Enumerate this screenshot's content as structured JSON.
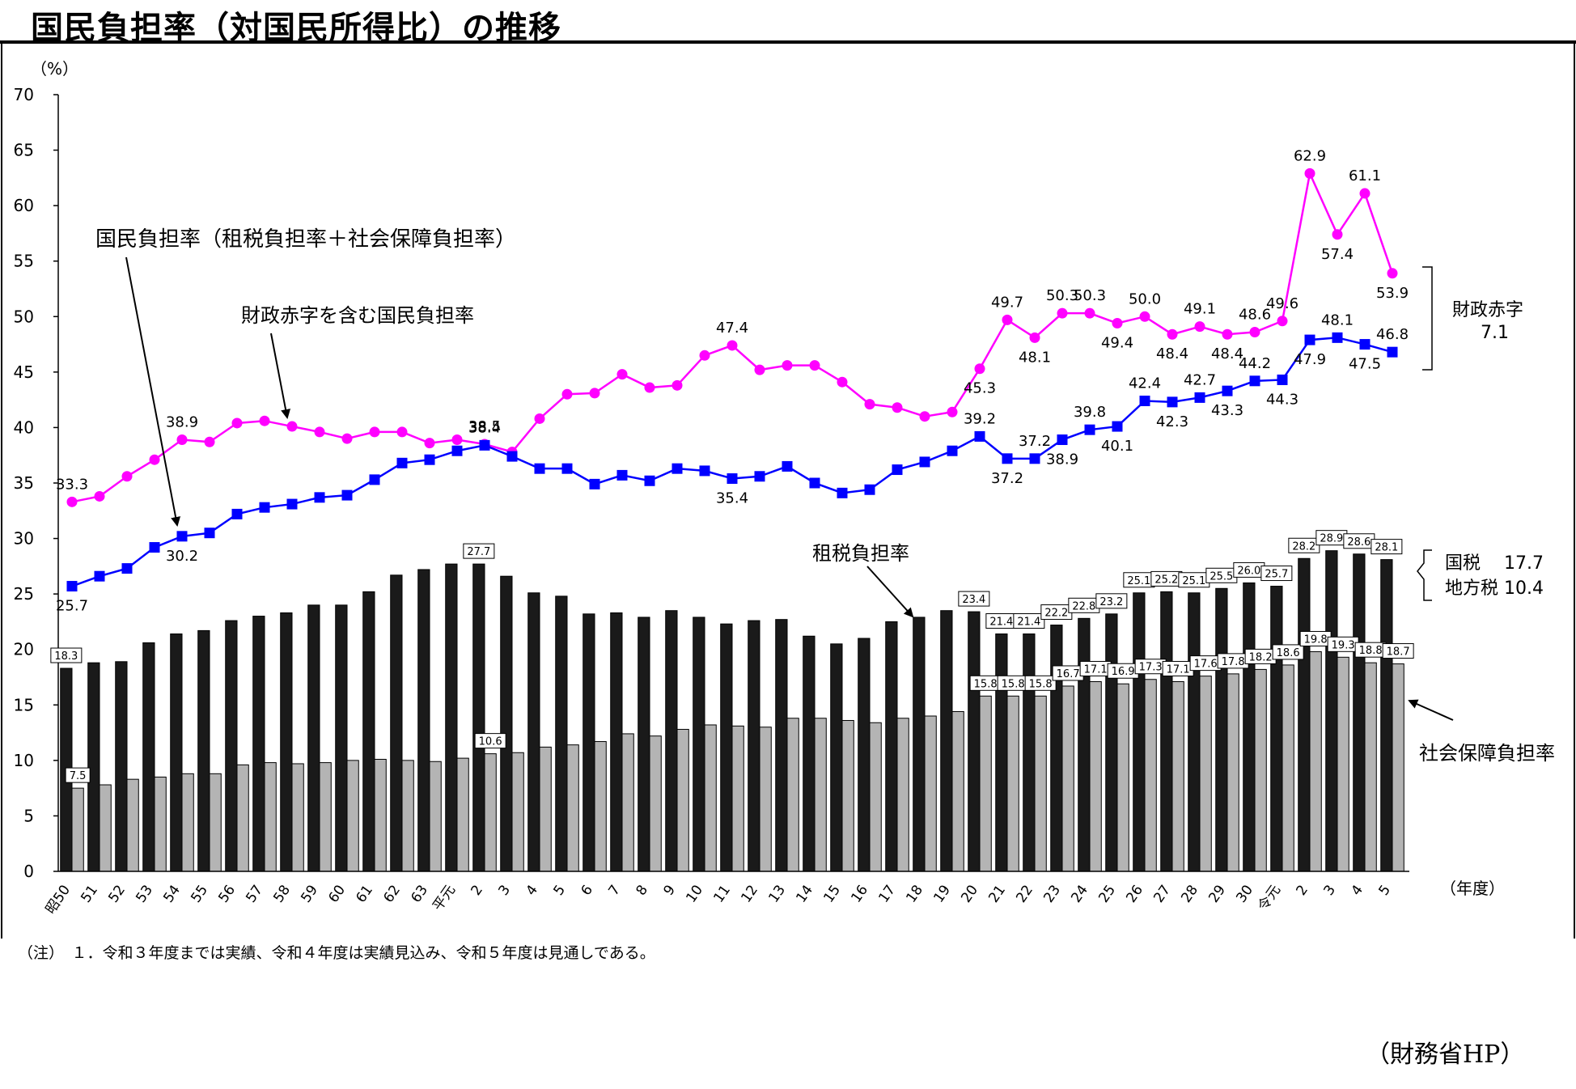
{
  "header": {
    "title": "国民負担率（対国民所得比）の推移"
  },
  "footer": {
    "note": "（注）　１．令和３年度までは実績、令和４年度は実績見込み、令和５年度は見通しである。",
    "source": "（財務省HP）"
  },
  "colors": {
    "deficit_line": "#ff00ff",
    "burden_line": "#0000ff",
    "tax_bar": "#1a1a1a",
    "social_bar": "#b4b4b4"
  },
  "annotations": {
    "burden": "国民負担率（租税負担率＋社会保障負担率）",
    "deficit": "財政赤字を含む国民負担率",
    "tax": "租税負担率",
    "social": "社会保障負担率",
    "bracket_top_line1": "財政赤字",
    "bracket_top_line2": "7.1",
    "bracket_bottom_line1": "国税　 17.7",
    "bracket_bottom_line2": "地方税 10.4"
  },
  "chart_data": {
    "type": "bar",
    "ylabel": "（%）",
    "xlabel": "（年度）",
    "ylim": [
      0,
      70
    ],
    "yticks": [
      0,
      5,
      10,
      15,
      20,
      25,
      30,
      35,
      40,
      45,
      50,
      55,
      60,
      65,
      70
    ],
    "categories": [
      "昭50",
      "51",
      "52",
      "53",
      "54",
      "55",
      "56",
      "57",
      "58",
      "59",
      "60",
      "61",
      "62",
      "63",
      "平元",
      "2",
      "3",
      "4",
      "5",
      "6",
      "7",
      "8",
      "9",
      "10",
      "11",
      "12",
      "13",
      "14",
      "15",
      "16",
      "17",
      "18",
      "19",
      "20",
      "21",
      "22",
      "23",
      "24",
      "25",
      "26",
      "27",
      "28",
      "29",
      "30",
      "令元",
      "2",
      "3",
      "4",
      "5"
    ],
    "series": [
      {
        "name": "租税負担率",
        "type": "bar",
        "values": [
          18.3,
          18.8,
          18.9,
          20.6,
          21.4,
          21.7,
          22.6,
          23.0,
          23.3,
          24.0,
          24.0,
          25.2,
          26.7,
          27.2,
          27.7,
          27.7,
          26.6,
          25.1,
          24.8,
          23.2,
          23.3,
          22.9,
          23.5,
          22.9,
          22.3,
          22.6,
          22.7,
          21.2,
          20.5,
          21.0,
          22.5,
          22.9,
          23.5,
          23.4,
          21.4,
          21.4,
          22.2,
          22.8,
          23.2,
          25.1,
          25.2,
          25.1,
          25.5,
          26.0,
          25.7,
          28.2,
          28.9,
          28.6,
          28.1
        ],
        "labels": {
          "0": "18.3",
          "15": "27.7",
          "33": "23.4",
          "34": "21.4",
          "35": "21.4",
          "36": "22.2",
          "37": "22.8",
          "38": "23.2",
          "39": "25.1",
          "40": "25.2",
          "41": "25.1",
          "42": "25.5",
          "43": "26.0",
          "44": "25.7",
          "45": "28.2",
          "46": "28.9",
          "47": "28.6",
          "48": "28.1"
        }
      },
      {
        "name": "社会保障負担率",
        "type": "bar",
        "values": [
          7.5,
          7.8,
          8.3,
          8.5,
          8.8,
          8.8,
          9.6,
          9.8,
          9.7,
          9.8,
          10.0,
          10.1,
          10.0,
          9.9,
          10.2,
          10.6,
          10.7,
          11.2,
          11.4,
          11.7,
          12.4,
          12.2,
          12.8,
          13.2,
          13.1,
          13.0,
          13.8,
          13.8,
          13.6,
          13.4,
          13.8,
          14.0,
          14.4,
          15.8,
          15.8,
          15.8,
          16.7,
          17.1,
          16.9,
          17.3,
          17.1,
          17.6,
          17.8,
          18.2,
          18.6,
          19.8,
          19.3,
          18.8,
          18.7
        ],
        "labels": {
          "0": "7.5",
          "15": "10.6",
          "33": "15.8",
          "34": "15.8",
          "35": "15.8",
          "36": "16.7",
          "37": "17.1",
          "38": "16.9",
          "39": "17.3",
          "40": "17.1",
          "41": "17.6",
          "42": "17.8",
          "43": "18.2",
          "44": "18.6",
          "45": "19.8",
          "46": "19.3",
          "47": "18.8",
          "48": "18.7"
        }
      },
      {
        "name": "国民負担率",
        "type": "line",
        "values": [
          25.7,
          26.6,
          27.3,
          29.2,
          30.2,
          30.5,
          32.2,
          32.8,
          33.1,
          33.7,
          33.9,
          35.3,
          36.8,
          37.1,
          37.9,
          38.4,
          37.4,
          36.3,
          36.3,
          34.9,
          35.7,
          35.2,
          36.3,
          36.1,
          35.4,
          35.6,
          36.5,
          35.0,
          34.1,
          34.4,
          36.2,
          36.9,
          37.9,
          39.2,
          37.2,
          37.2,
          38.9,
          39.8,
          40.1,
          42.4,
          42.3,
          42.7,
          43.3,
          44.2,
          44.3,
          47.9,
          48.1,
          47.5,
          46.8
        ],
        "labels": {
          "0": "25.7",
          "4": "30.2",
          "15": "38.4",
          "24": "35.4",
          "33": "39.2",
          "34": "37.2",
          "35": "37.2",
          "36": "38.9",
          "37": "39.8",
          "38": "40.1",
          "39": "42.4",
          "40": "42.3",
          "41": "42.7",
          "42": "43.3",
          "43": "44.2",
          "44": "44.3",
          "45": "47.9",
          "46": "48.1",
          "47": "47.5",
          "48": "46.8"
        }
      },
      {
        "name": "財政赤字を含む国民負担率",
        "type": "line",
        "values": [
          33.3,
          33.8,
          35.6,
          37.1,
          38.9,
          38.7,
          40.4,
          40.6,
          40.1,
          39.6,
          39.0,
          39.6,
          39.6,
          38.6,
          38.9,
          38.5,
          37.8,
          40.8,
          43.0,
          43.1,
          44.8,
          43.6,
          43.8,
          46.5,
          47.4,
          45.2,
          45.6,
          45.6,
          44.1,
          42.1,
          41.8,
          41.0,
          41.4,
          45.3,
          49.7,
          48.1,
          50.3,
          50.3,
          49.4,
          50.0,
          48.4,
          49.1,
          48.4,
          48.6,
          49.6,
          62.9,
          57.4,
          61.1,
          53.9
        ],
        "labels": {
          "0": "33.3",
          "4": "38.9",
          "15": "38.5",
          "24": "47.4",
          "33": "45.3",
          "34": "49.7",
          "35": "48.1",
          "36": "50.3",
          "37": "50.3",
          "38": "49.4",
          "39": "50.0",
          "40": "48.4",
          "41": "49.1",
          "42": "48.4",
          "43": "48.6",
          "44": "49.6",
          "45": "62.9",
          "46": "57.4",
          "47": "61.1",
          "48": "53.9"
        }
      }
    ]
  }
}
